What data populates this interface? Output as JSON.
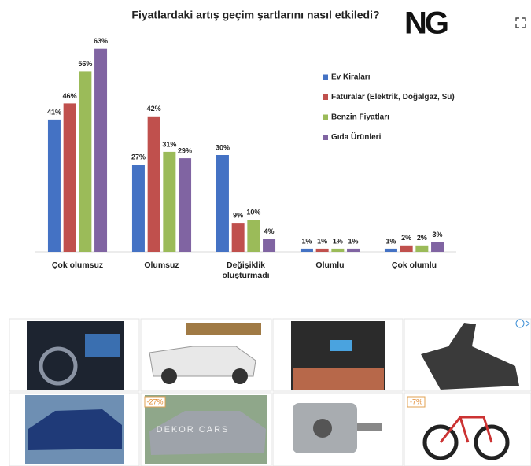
{
  "chart_data": {
    "type": "bar",
    "title": "Fiyatlardaki artış geçim şartlarını nasıl etkiledi?",
    "logo": "NG",
    "categories": [
      "Çok olumsuz",
      "Olumsuz",
      "Değişiklik\noluşturmadı",
      "Olumlu",
      "Çok olumlu"
    ],
    "series": [
      {
        "name": "Ev Kiraları",
        "color": "#4472c4",
        "values": [
          41,
          27,
          30,
          1,
          1
        ],
        "value_labels": [
          "41%",
          "27%",
          "30%",
          "1%",
          "1%"
        ]
      },
      {
        "name": "Faturalar (Elektrik, Doğalgaz, Su)",
        "color": "#c0504d",
        "values": [
          46,
          42,
          9,
          1,
          2
        ],
        "value_labels": [
          "46%",
          "42%",
          "9%",
          "1%",
          "2%"
        ]
      },
      {
        "name": "Benzin Fiyatları",
        "color": "#9bbb59",
        "values": [
          56,
          31,
          10,
          1,
          2
        ],
        "value_labels": [
          "56%",
          "31%",
          "10%",
          "1%",
          "2%"
        ]
      },
      {
        "name": "Gıda Ürünleri",
        "color": "#8064a2",
        "values": [
          63,
          29,
          4,
          1,
          3
        ],
        "value_labels": [
          "63%",
          "29%",
          "4%",
          "1%",
          "3%"
        ]
      }
    ],
    "ylim": [
      0,
      70
    ],
    "legend": "upper right"
  },
  "ads": {
    "badges": [
      "-27%",
      "-7%"
    ],
    "watermark": "DEKOR CARS"
  }
}
